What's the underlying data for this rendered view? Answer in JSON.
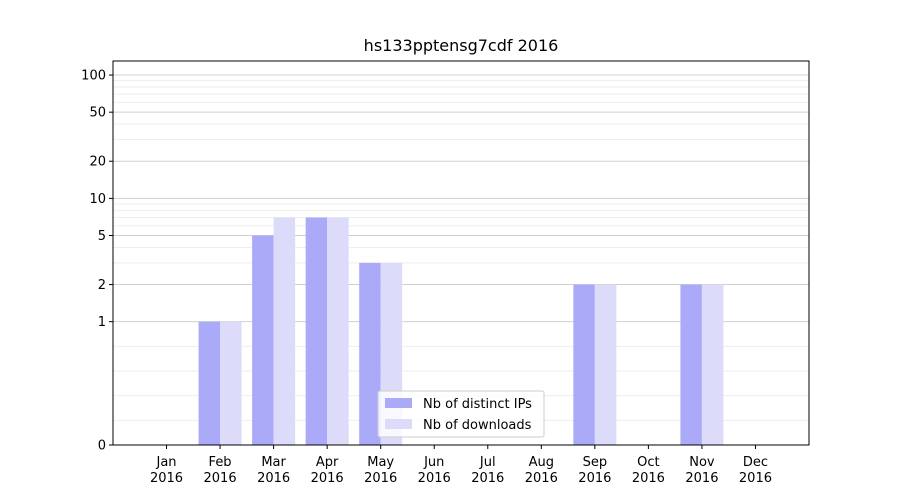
{
  "chart_data": {
    "type": "bar",
    "title": "hs133pptensg7cdf 2016",
    "xlabel": "",
    "ylabel": "",
    "y_scale": "symlog",
    "ylim": [
      0,
      130
    ],
    "y_ticks": [
      0,
      1,
      2,
      5,
      10,
      20,
      50,
      100
    ],
    "grid": true,
    "legend_position": "bottom-center",
    "categories": [
      {
        "month": "Jan",
        "year": "2016"
      },
      {
        "month": "Feb",
        "year": "2016"
      },
      {
        "month": "Mar",
        "year": "2016"
      },
      {
        "month": "Apr",
        "year": "2016"
      },
      {
        "month": "May",
        "year": "2016"
      },
      {
        "month": "Jun",
        "year": "2016"
      },
      {
        "month": "Jul",
        "year": "2016"
      },
      {
        "month": "Aug",
        "year": "2016"
      },
      {
        "month": "Sep",
        "year": "2016"
      },
      {
        "month": "Oct",
        "year": "2016"
      },
      {
        "month": "Nov",
        "year": "2016"
      },
      {
        "month": "Dec",
        "year": "2016"
      }
    ],
    "series": [
      {
        "name": "Nb of distinct IPs",
        "color": "#aaaaf8",
        "values": [
          0,
          1,
          5,
          7,
          3,
          0,
          0,
          0,
          2,
          0,
          2,
          0
        ]
      },
      {
        "name": "Nb of downloads",
        "color": "#dcdcfa",
        "values": [
          0,
          1,
          7,
          7,
          3,
          0,
          0,
          0,
          2,
          0,
          2,
          0
        ]
      }
    ]
  }
}
